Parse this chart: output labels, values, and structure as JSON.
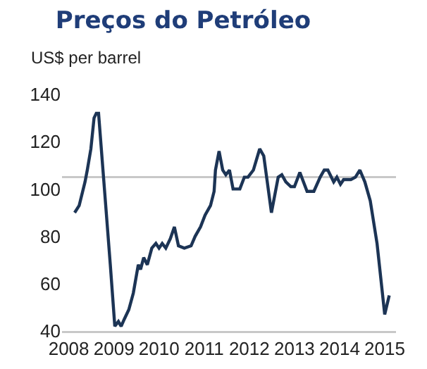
{
  "chart_data": {
    "type": "line",
    "title": "Preços do Petróleo",
    "ylabel": "US$ per barrel",
    "x": [
      2008.13,
      2008.23,
      2008.36,
      2008.41,
      2008.49,
      2008.56,
      2008.61,
      2008.66,
      2008.79,
      2008.92,
      2009.02,
      2009.1,
      2009.16,
      2009.23,
      2009.33,
      2009.43,
      2009.54,
      2009.59,
      2009.66,
      2009.74,
      2009.84,
      2009.93,
      2010.0,
      2010.07,
      2010.15,
      2010.25,
      2010.34,
      2010.43,
      2010.56,
      2010.71,
      2010.8,
      2010.92,
      2011.02,
      2011.14,
      2011.22,
      2011.25,
      2011.33,
      2011.41,
      2011.48,
      2011.56,
      2011.64,
      2011.79,
      2011.89,
      2011.97,
      2012.09,
      2012.23,
      2012.32,
      2012.49,
      2012.64,
      2012.72,
      2012.81,
      2012.92,
      2013.0,
      2013.12,
      2013.28,
      2013.43,
      2013.57,
      2013.66,
      2013.74,
      2013.87,
      2013.94,
      2014.02,
      2014.09,
      2014.25,
      2014.35,
      2014.45,
      2014.56,
      2014.68,
      2014.83,
      2015.0,
      2015.1
    ],
    "series": [
      {
        "color": "#1c3455",
        "values": [
          90,
          93,
          103,
          108,
          117,
          130,
          132,
          132,
          100,
          68,
          42,
          44,
          42,
          45,
          49,
          56,
          68,
          66,
          71,
          68,
          75,
          77,
          75,
          77,
          75,
          79,
          84,
          76,
          75,
          76,
          80,
          84,
          89,
          93,
          99,
          108,
          116,
          108,
          106,
          108,
          100,
          100,
          105,
          105,
          108,
          117,
          114,
          90,
          105,
          106,
          103,
          101,
          101,
          107,
          99,
          99,
          105,
          108,
          108,
          103,
          105,
          102,
          104,
          104,
          105,
          108,
          103,
          95,
          77,
          47,
          55
        ]
      }
    ],
    "xlim": [
      2007.85,
      2015.25
    ],
    "xticks": [
      2008,
      2009,
      2010,
      2011,
      2012,
      2013,
      2014,
      2015
    ],
    "ylim": [
      40,
      140
    ],
    "yticks": [
      40,
      60,
      80,
      100,
      120,
      140
    ],
    "ref_lines": [
      {
        "axis": "y",
        "value": 105,
        "color": "#c8c8c8"
      }
    ],
    "grid": false,
    "legend": false,
    "marker": "none",
    "line_style": "solid"
  }
}
